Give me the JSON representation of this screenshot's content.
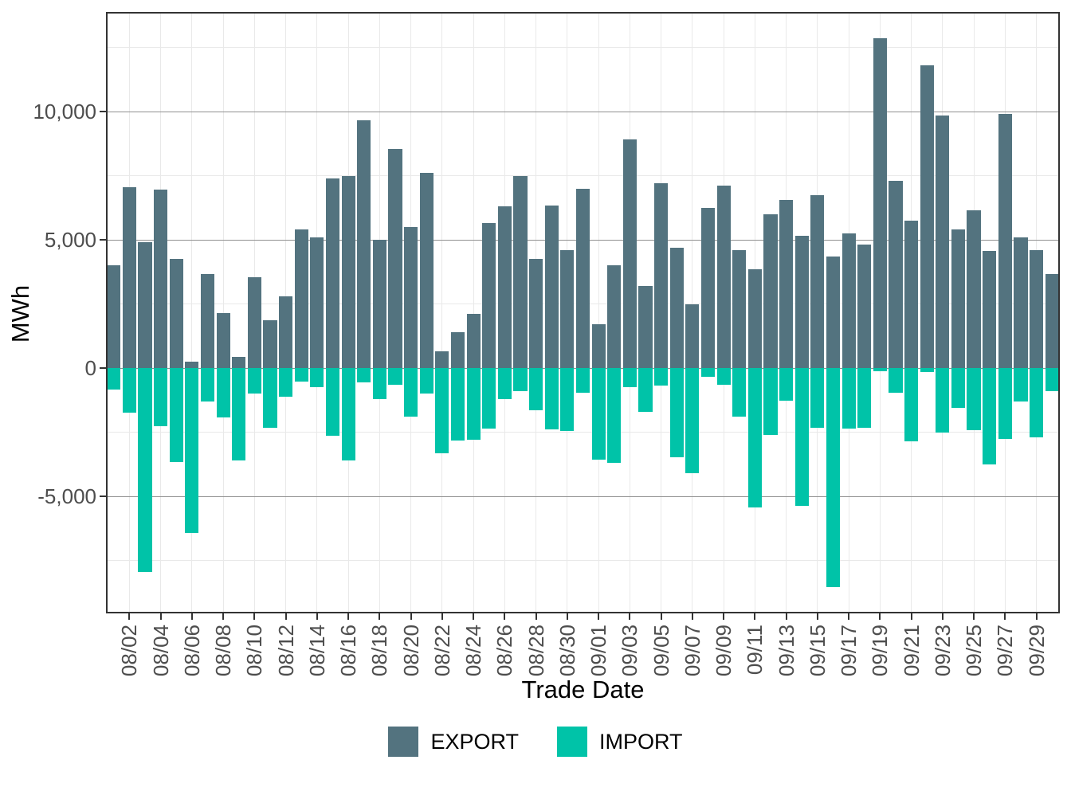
{
  "chart_data": {
    "type": "bar",
    "title": "",
    "xlabel": "Trade Date",
    "ylabel": "MWh",
    "legend_position": "bottom",
    "grid": true,
    "ylim": [
      -9565,
      13882
    ],
    "categories": [
      "08/01",
      "08/02",
      "08/03",
      "08/04",
      "08/05",
      "08/06",
      "08/07",
      "08/08",
      "08/09",
      "08/10",
      "08/11",
      "08/12",
      "08/13",
      "08/14",
      "08/15",
      "08/16",
      "08/17",
      "08/18",
      "08/19",
      "08/20",
      "08/21",
      "08/22",
      "08/23",
      "08/24",
      "08/25",
      "08/26",
      "08/27",
      "08/28",
      "08/29",
      "08/30",
      "08/31",
      "09/01",
      "09/02",
      "09/03",
      "09/04",
      "09/05",
      "09/06",
      "09/07",
      "09/08",
      "09/09",
      "09/10",
      "09/11",
      "09/12",
      "09/13",
      "09/14",
      "09/15",
      "09/16",
      "09/17",
      "09/18",
      "09/19",
      "09/20",
      "09/21",
      "09/22",
      "09/23",
      "09/24",
      "09/25",
      "09/26",
      "09/27",
      "09/28",
      "09/29",
      "09/30"
    ],
    "series": [
      {
        "name": "EXPORT",
        "color": "#53737F",
        "values": [
          4000,
          7050,
          4900,
          6950,
          4250,
          250,
          3650,
          2150,
          450,
          3550,
          1850,
          2800,
          5400,
          5100,
          7400,
          7500,
          9650,
          5000,
          8550,
          5500,
          7600,
          650,
          1400,
          2100,
          5650,
          6300,
          7500,
          4250,
          6350,
          4600,
          7000,
          1700,
          4000,
          8900,
          3200,
          7200,
          4700,
          2500,
          6250,
          7100,
          4600,
          3850,
          6000,
          6550,
          5150,
          6750,
          4350,
          5250,
          4800,
          12850,
          7300,
          5750,
          11800,
          9850,
          5400,
          6150,
          4550,
          9900,
          5100,
          4600,
          3650
        ]
      },
      {
        "name": "IMPORT",
        "color": "#00C3A8",
        "values": [
          -850,
          -1750,
          -7950,
          -2270,
          -3680,
          -6440,
          -1310,
          -1930,
          -3610,
          -1000,
          -2320,
          -1110,
          -530,
          -750,
          -2630,
          -3610,
          -550,
          -1200,
          -660,
          -1900,
          -1000,
          -3320,
          -2840,
          -2800,
          -2370,
          -1210,
          -900,
          -1650,
          -2390,
          -2450,
          -950,
          -3560,
          -3710,
          -730,
          -1700,
          -680,
          -3480,
          -4090,
          -350,
          -640,
          -1890,
          -5450,
          -2600,
          -1260,
          -5370,
          -2340,
          -8530,
          -2350,
          -2320,
          -120,
          -950,
          -2870,
          -150,
          -2510,
          -1560,
          -2430,
          -3750,
          -2750,
          -1300,
          -2700,
          -900
        ]
      }
    ],
    "x_tick_labels": [
      "08/02",
      "08/04",
      "08/06",
      "08/08",
      "08/10",
      "08/12",
      "08/14",
      "08/16",
      "08/18",
      "08/20",
      "08/22",
      "08/24",
      "08/26",
      "08/28",
      "08/30",
      "09/01",
      "09/03",
      "09/05",
      "09/07",
      "09/09",
      "09/11",
      "09/13",
      "09/15",
      "09/17",
      "09/19",
      "09/21",
      "09/23",
      "09/25",
      "09/27",
      "09/29"
    ],
    "y_ticks": [
      {
        "value": 10000,
        "label": "10,000"
      },
      {
        "value": 5000,
        "label": "5,000"
      },
      {
        "value": 0,
        "label": "0"
      },
      {
        "value": -5000,
        "label": "-5,000"
      }
    ],
    "y_minor_ticks": [
      12500,
      7500,
      2500,
      -2500,
      -7500
    ],
    "style": {
      "panel_border_color": "#333333",
      "major_grid_color": "#919191",
      "minor_grid_color": "#E9E9E9",
      "tick_text_color": "#4D4D4D",
      "background_color": "#FFFFFF"
    }
  }
}
